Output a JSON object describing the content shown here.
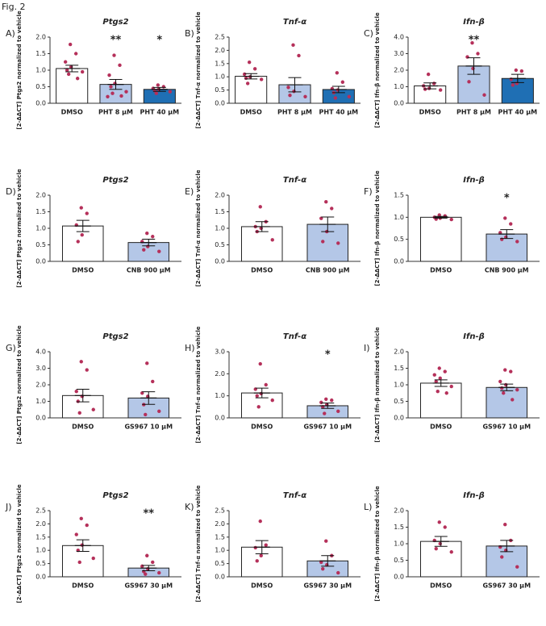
{
  "fig_label": "Fig. 2",
  "chart_data": [
    {
      "type": "bar",
      "panel": "A)",
      "title": "Ptgs2",
      "ylabel": "[2-ΔΔCT] Ptgs2 normalized to vehicle",
      "categories": [
        "DMSO",
        "PHT 8 µM",
        "PHT 40 µM"
      ],
      "values": [
        1.05,
        0.57,
        0.42
      ],
      "errors": [
        0.1,
        0.15,
        0.06
      ],
      "points": [
        [
          1.78,
          1.5,
          1.25,
          1.1,
          1.0,
          0.95,
          0.88,
          0.75
        ],
        [
          1.45,
          1.15,
          0.85,
          0.6,
          0.5,
          0.35,
          0.3,
          0.22,
          0.2
        ],
        [
          0.55,
          0.5,
          0.45,
          0.42,
          0.38,
          0.35,
          0.3
        ]
      ],
      "significance": [
        null,
        "**",
        "*"
      ],
      "colors": [
        "#ffffff",
        "#b4c7e7",
        "#1f6fb4"
      ],
      "ylim": [
        0,
        2
      ],
      "yticks": [
        {
          "value": 0,
          "label": "0.0"
        },
        0.5,
        {
          "value": 1,
          "label": "1.0"
        },
        1.5,
        {
          "value": 2,
          "label": "2.0"
        }
      ]
    },
    {
      "type": "bar",
      "panel": "B)",
      "title": "Tnf-α",
      "ylabel": "[2-ΔΔCT] Tnf-α normalized to vehicle",
      "categories": [
        "DMSO",
        "PHT 8 µM",
        "PHT 40 µM"
      ],
      "values": [
        1.02,
        0.7,
        0.52
      ],
      "errors": [
        0.1,
        0.27,
        0.12
      ],
      "points": [
        [
          1.55,
          1.3,
          1.1,
          1.0,
          0.95,
          0.9,
          0.75
        ],
        [
          2.2,
          1.8,
          0.6,
          0.45,
          0.3,
          0.25
        ],
        [
          1.15,
          0.8,
          0.55,
          0.5,
          0.4,
          0.25,
          0.2
        ]
      ],
      "significance": [
        null,
        null,
        null
      ],
      "colors": [
        "#ffffff",
        "#b4c7e7",
        "#1f6fb4"
      ],
      "ylim": [
        0,
        2.5
      ],
      "yticks": [
        {
          "value": 0,
          "label": "0.0"
        },
        0.5,
        {
          "value": 1,
          "label": "1.0"
        },
        1.5,
        {
          "value": 2,
          "label": "2.0"
        },
        2.5
      ]
    },
    {
      "type": "bar",
      "panel": "C)",
      "title": "Ifn-β",
      "ylabel": "[2-ΔΔCT] Ifn-β normalized to vehicle",
      "categories": [
        "DMSO",
        "PHT 8 µM",
        "PHT 40 µM"
      ],
      "values": [
        1.05,
        2.25,
        1.5
      ],
      "errors": [
        0.18,
        0.5,
        0.25
      ],
      "points": [
        [
          1.75,
          1.2,
          1.05,
          0.9,
          0.85,
          0.8
        ],
        [
          3.65,
          3.0,
          2.8,
          2.1,
          1.3,
          0.5
        ],
        [
          2.0,
          1.95,
          1.45,
          1.2,
          1.1
        ]
      ],
      "significance": [
        null,
        "**",
        null
      ],
      "colors": [
        "#ffffff",
        "#b4c7e7",
        "#1f6fb4"
      ],
      "ylim": [
        0,
        4
      ],
      "yticks": [
        {
          "value": 0,
          "label": "0.0"
        },
        {
          "value": 1,
          "label": "1.0"
        },
        {
          "value": 2,
          "label": "2.0"
        },
        {
          "value": 3,
          "label": "3.0"
        },
        {
          "value": 4,
          "label": "4.0"
        }
      ]
    },
    {
      "type": "bar",
      "panel": "D)",
      "title": "Ptgs2",
      "ylabel": "[2-ΔΔCT] Ptgs2 normalized to vehicle",
      "categories": [
        "DMSO",
        "CNB 900 µM"
      ],
      "values": [
        1.07,
        0.57
      ],
      "errors": [
        0.17,
        0.1
      ],
      "points": [
        [
          1.62,
          1.45,
          1.1,
          0.8,
          0.6
        ],
        [
          0.85,
          0.75,
          0.6,
          0.45,
          0.35,
          0.3
        ]
      ],
      "significance": [
        null,
        null
      ],
      "colors": [
        "#ffffff",
        "#b4c7e7"
      ],
      "ylim": [
        0,
        2
      ],
      "yticks": [
        {
          "value": 0,
          "label": "0.0"
        },
        0.5,
        {
          "value": 1,
          "label": "1.0"
        },
        1.5,
        {
          "value": 2,
          "label": "2.0"
        }
      ]
    },
    {
      "type": "bar",
      "panel": "E)",
      "title": "Tnf-α",
      "ylabel": "[2-ΔΔCT] Tnf-α normalized to vehicle",
      "categories": [
        "DMSO",
        "CNB 900 µM"
      ],
      "values": [
        1.05,
        1.12
      ],
      "errors": [
        0.15,
        0.22
      ],
      "points": [
        [
          1.65,
          1.2,
          1.05,
          1.0,
          0.9,
          0.65
        ],
        [
          1.8,
          1.6,
          1.3,
          0.9,
          0.6,
          0.55
        ]
      ],
      "significance": [
        null,
        null
      ],
      "colors": [
        "#ffffff",
        "#b4c7e7"
      ],
      "ylim": [
        0,
        2
      ],
      "yticks": [
        {
          "value": 0,
          "label": "0.0"
        },
        0.5,
        {
          "value": 1,
          "label": "1.0"
        },
        1.5,
        {
          "value": 2,
          "label": "2.0"
        }
      ]
    },
    {
      "type": "bar",
      "panel": "F)",
      "title": "Ifn-β",
      "ylabel": "[2-ΔΔCT] Ifn-β normalized to vehicle",
      "categories": [
        "DMSO",
        "CNB 900 µM"
      ],
      "values": [
        1.0,
        0.62
      ],
      "errors": [
        0.02,
        0.1
      ],
      "points": [
        [
          1.05,
          1.03,
          1.0,
          0.98,
          0.96,
          0.95
        ],
        [
          0.98,
          0.85,
          0.65,
          0.55,
          0.5,
          0.45
        ]
      ],
      "significance": [
        null,
        "*"
      ],
      "colors": [
        "#ffffff",
        "#b4c7e7"
      ],
      "ylim": [
        0,
        1.5
      ],
      "yticks": [
        {
          "value": 0,
          "label": "0.0"
        },
        0.5,
        {
          "value": 1,
          "label": "1.0"
        },
        1.5
      ]
    },
    {
      "type": "bar",
      "panel": "G)",
      "title": "Ptgs2",
      "ylabel": "[2-ΔΔCT] Ptgs2 normalized to vehicle",
      "categories": [
        "DMSO",
        "GS967 10 µM"
      ],
      "values": [
        1.35,
        1.2
      ],
      "errors": [
        0.38,
        0.38
      ],
      "points": [
        [
          3.4,
          2.9,
          1.6,
          1.3,
          1.0,
          0.5,
          0.3
        ],
        [
          3.3,
          2.2,
          1.5,
          1.3,
          0.8,
          0.4,
          0.2
        ]
      ],
      "significance": [
        null,
        null
      ],
      "colors": [
        "#ffffff",
        "#b4c7e7"
      ],
      "ylim": [
        0,
        4
      ],
      "yticks": [
        {
          "value": 0,
          "label": "0.0"
        },
        {
          "value": 1,
          "label": "1.0"
        },
        {
          "value": 2,
          "label": "2.0"
        },
        {
          "value": 3,
          "label": "3.0"
        },
        {
          "value": 4,
          "label": "4.0"
        }
      ]
    },
    {
      "type": "bar",
      "panel": "H)",
      "title": "Tnf-α",
      "ylabel": "[2-ΔΔCT] Tnf-α normalized to vehicle",
      "categories": [
        "DMSO",
        "GS967 10 µM"
      ],
      "values": [
        1.13,
        0.55
      ],
      "errors": [
        0.22,
        0.12
      ],
      "points": [
        [
          2.45,
          1.5,
          1.3,
          1.1,
          1.0,
          0.8,
          0.5
        ],
        [
          0.85,
          0.8,
          0.7,
          0.6,
          0.5,
          0.3,
          0.2
        ]
      ],
      "significance": [
        null,
        "*"
      ],
      "colors": [
        "#ffffff",
        "#b4c7e7"
      ],
      "ylim": [
        0,
        3
      ],
      "yticks": [
        {
          "value": 0,
          "label": "0.0"
        },
        {
          "value": 1,
          "label": "1.0"
        },
        {
          "value": 2,
          "label": "2.0"
        },
        {
          "value": 3,
          "label": "3.0"
        }
      ]
    },
    {
      "type": "bar",
      "panel": "I)",
      "title": "Ifn-β",
      "ylabel": "[2-ΔΔCT] Ifn-β normalized to vehicle",
      "categories": [
        "DMSO",
        "GS967 10 µM"
      ],
      "values": [
        1.05,
        0.92
      ],
      "errors": [
        0.1,
        0.1
      ],
      "points": [
        [
          1.5,
          1.4,
          1.3,
          1.2,
          1.1,
          0.95,
          0.8,
          0.75
        ],
        [
          1.45,
          1.4,
          1.1,
          1.0,
          0.9,
          0.85,
          0.75,
          0.55
        ]
      ],
      "significance": [
        null,
        null
      ],
      "colors": [
        "#ffffff",
        "#b4c7e7"
      ],
      "ylim": [
        0,
        2
      ],
      "yticks": [
        {
          "value": 0,
          "label": "0.0"
        },
        0.5,
        {
          "value": 1,
          "label": "1.0"
        },
        1.5,
        {
          "value": 2,
          "label": "2.0"
        }
      ]
    },
    {
      "type": "bar",
      "panel": "J)",
      "title": "Ptgs2",
      "ylabel": "[2-ΔΔCT] Ptgs2 normalized to vehicle",
      "categories": [
        "DMSO",
        "GS967 30 µM"
      ],
      "values": [
        1.18,
        0.33
      ],
      "errors": [
        0.22,
        0.1
      ],
      "points": [
        [
          2.2,
          1.95,
          1.6,
          1.2,
          1.0,
          0.7,
          0.55
        ],
        [
          0.8,
          0.55,
          0.4,
          0.3,
          0.2,
          0.15,
          0.1
        ]
      ],
      "significance": [
        null,
        "**"
      ],
      "colors": [
        "#ffffff",
        "#b4c7e7"
      ],
      "ylim": [
        0,
        2.5
      ],
      "yticks": [
        {
          "value": 0,
          "label": "0.0"
        },
        0.5,
        {
          "value": 1,
          "label": "1.0"
        },
        1.5,
        {
          "value": 2,
          "label": "2.0"
        },
        2.5
      ]
    },
    {
      "type": "bar",
      "panel": "K)",
      "title": "Tnf-α",
      "ylabel": "[2-ΔΔCT] Tnf-α normalized to vehicle",
      "categories": [
        "DMSO",
        "GS967 30 µM"
      ],
      "values": [
        1.12,
        0.6
      ],
      "errors": [
        0.25,
        0.2
      ],
      "points": [
        [
          2.1,
          1.2,
          1.1,
          0.8,
          0.6
        ],
        [
          1.35,
          0.8,
          0.55,
          0.45,
          0.3,
          0.15
        ]
      ],
      "significance": [
        null,
        null
      ],
      "colors": [
        "#ffffff",
        "#b4c7e7"
      ],
      "ylim": [
        0,
        2.5
      ],
      "yticks": [
        {
          "value": 0,
          "label": "0.0"
        },
        0.5,
        {
          "value": 1,
          "label": "1.0"
        },
        1.5,
        {
          "value": 2,
          "label": "2.0"
        },
        2.5
      ]
    },
    {
      "type": "bar",
      "panel": "L)",
      "title": "Ifn-β",
      "ylabel": "[2-ΔΔCT] Ifn-β normalized to vehicle",
      "categories": [
        "DMSO",
        "GS967 30 µM"
      ],
      "values": [
        1.07,
        0.93
      ],
      "errors": [
        0.15,
        0.17
      ],
      "points": [
        [
          1.65,
          1.5,
          1.1,
          1.0,
          0.85,
          0.75
        ],
        [
          1.58,
          1.1,
          0.9,
          0.8,
          0.6,
          0.3
        ]
      ],
      "significance": [
        null,
        null
      ],
      "colors": [
        "#ffffff",
        "#b4c7e7"
      ],
      "ylim": [
        0,
        2
      ],
      "yticks": [
        {
          "value": 0,
          "label": "0.0"
        },
        0.5,
        {
          "value": 1,
          "label": "1.0"
        },
        1.5,
        {
          "value": 2,
          "label": "2.0"
        }
      ]
    }
  ]
}
